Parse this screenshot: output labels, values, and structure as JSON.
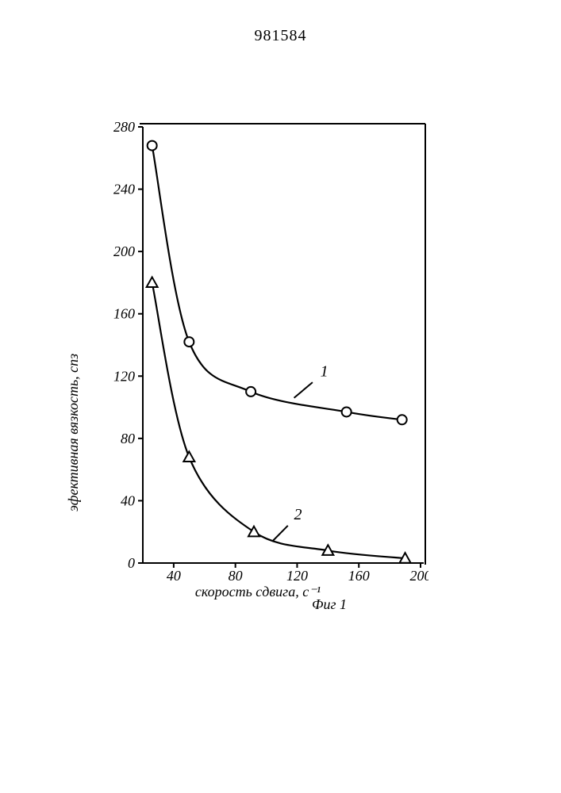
{
  "doc_number": "981584",
  "chart": {
    "type": "line",
    "x_axis": {
      "title": "скорость сдвига, с⁻¹",
      "min": 20,
      "max": 200,
      "ticks": [
        40,
        80,
        120,
        160,
        200
      ]
    },
    "y_axis": {
      "title": "эфективная вязкость, спз",
      "min": 0,
      "max": 280,
      "ticks": [
        0,
        40,
        80,
        120,
        160,
        200,
        240,
        280
      ]
    },
    "series": [
      {
        "id": "1",
        "label": "1",
        "marker": "circle",
        "color": "#000000",
        "points": [
          {
            "x": 26,
            "y": 268
          },
          {
            "x": 50,
            "y": 142
          },
          {
            "x": 90,
            "y": 110
          },
          {
            "x": 152,
            "y": 97
          },
          {
            "x": 188,
            "y": 92
          }
        ]
      },
      {
        "id": "2",
        "label": "2",
        "marker": "triangle",
        "color": "#000000",
        "points": [
          {
            "x": 26,
            "y": 180
          },
          {
            "x": 50,
            "y": 68
          },
          {
            "x": 92,
            "y": 20
          },
          {
            "x": 140,
            "y": 8
          },
          {
            "x": 190,
            "y": 3
          }
        ]
      }
    ],
    "fig_label": "Фиг 1",
    "background_color": "#ffffff",
    "line_color": "#000000",
    "line_width": 2.2,
    "marker_size": 6,
    "tick_fontsize": 18,
    "label_fontsize": 18
  }
}
